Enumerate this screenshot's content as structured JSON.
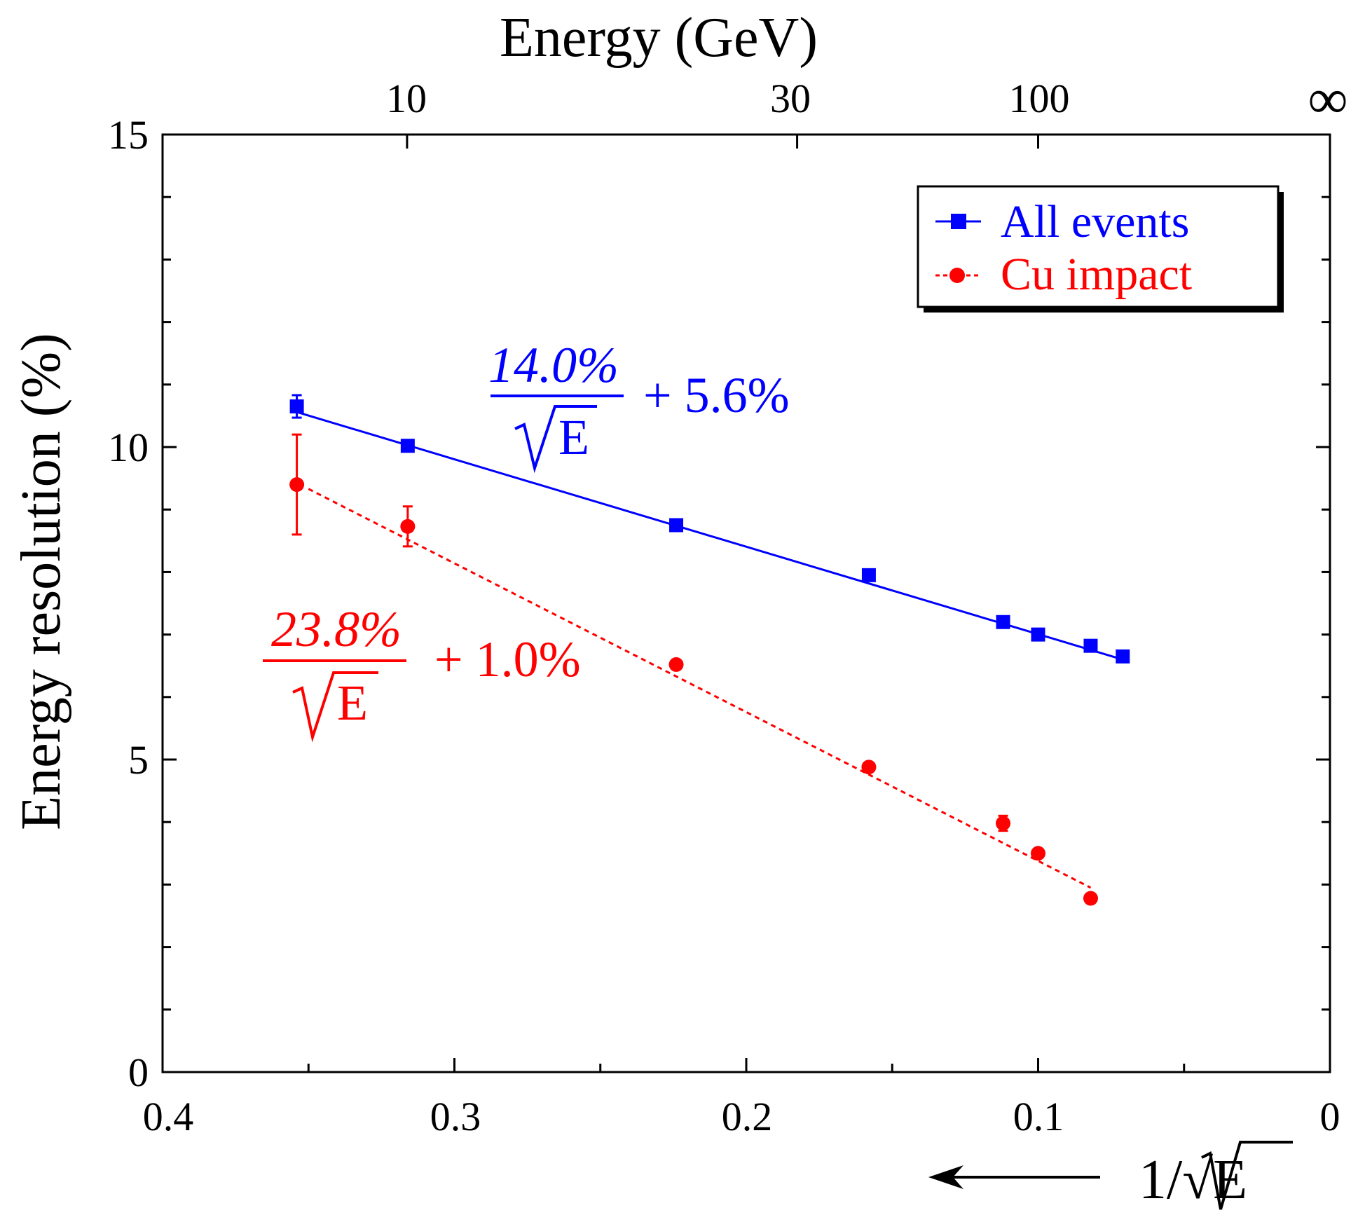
{
  "chart_data": {
    "type": "scatter",
    "title": "",
    "xlabel": "1/√E",
    "ylabel": "Energy resolution (%)",
    "top_axis_label": "Energy (GeV)",
    "xlim": [
      0.4,
      0
    ],
    "ylim": [
      0,
      15
    ],
    "x_ticks": [
      "0.4",
      "0.3",
      "0.2",
      "0.1",
      "0"
    ],
    "y_ticks": [
      "0",
      "5",
      "10",
      "15"
    ],
    "top_ticks": [
      {
        "label": "10",
        "energy": 10
      },
      {
        "label": "30",
        "energy": 30
      },
      {
        "label": "100",
        "energy": 100
      },
      {
        "label": "∞",
        "energy": "inf"
      }
    ],
    "legend_position": "top-right",
    "grid": false,
    "series": [
      {
        "name": "All events",
        "color": "#0000ff",
        "marker": "square",
        "line": "solid",
        "x": [
          0.354,
          0.316,
          0.224,
          0.158,
          0.112,
          0.1,
          0.082,
          0.071
        ],
        "y": [
          10.65,
          10.02,
          8.75,
          7.95,
          7.2,
          7.0,
          6.82,
          6.65
        ],
        "yerr": [
          0.18,
          0.05,
          0.05,
          0.05,
          0.05,
          0.05,
          0.05,
          0.08
        ],
        "fit": {
          "x": [
            0.354,
            0.071
          ],
          "y": [
            10.56,
            6.6
          ]
        },
        "annotation": {
          "numerator": "14.0%",
          "denominator": "E",
          "suffix": "+ 5.6%"
        }
      },
      {
        "name": "Cu impact",
        "color": "#ff0000",
        "marker": "circle",
        "line": "dashed",
        "x": [
          0.354,
          0.316,
          0.224,
          0.158,
          0.112,
          0.1,
          0.082
        ],
        "y": [
          9.4,
          8.73,
          6.52,
          4.88,
          3.98,
          3.5,
          2.78
        ],
        "yerr": [
          0.8,
          0.32,
          0.05,
          0.05,
          0.12,
          0.05,
          0.05
        ],
        "fit": {
          "x": [
            0.35,
            0.082
          ],
          "y": [
            9.33,
            2.95
          ]
        },
        "annotation": {
          "numerator": "23.8%",
          "denominator": "E",
          "suffix": "+ 1.0%"
        }
      }
    ]
  }
}
